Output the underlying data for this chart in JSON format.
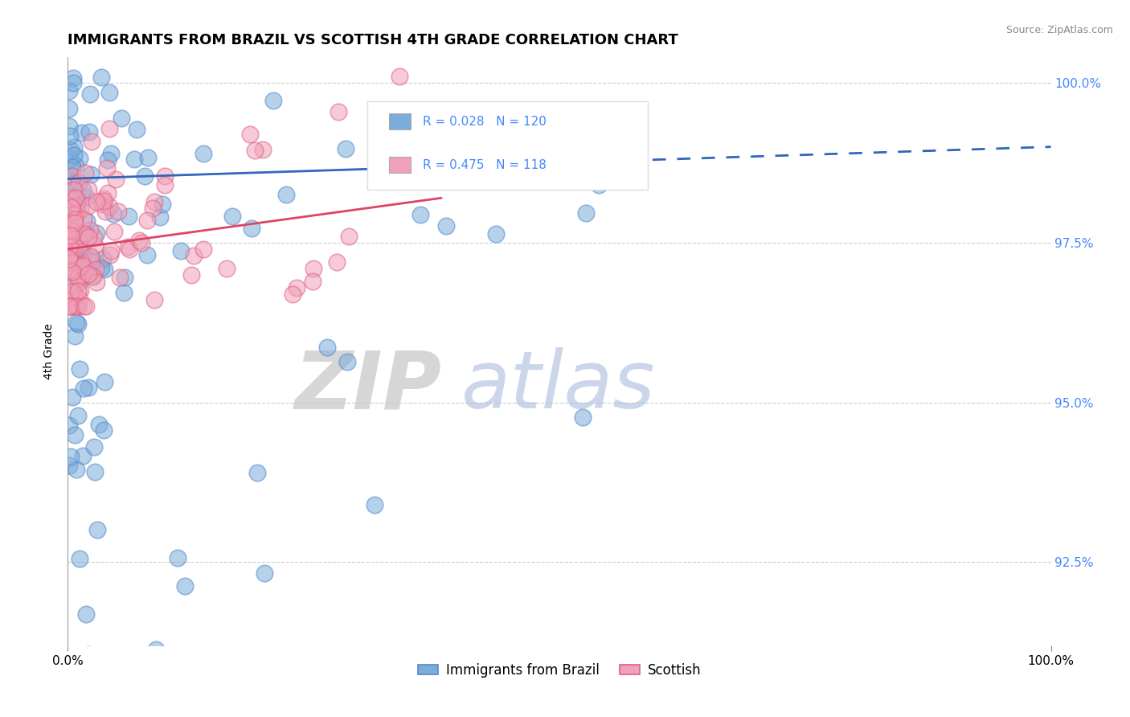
{
  "title": "IMMIGRANTS FROM BRAZIL VS SCOTTISH 4TH GRADE CORRELATION CHART",
  "source_text": "Source: ZipAtlas.com",
  "ylabel": "4th Grade",
  "legend_blue_label": "Immigrants from Brazil",
  "legend_pink_label": "Scottish",
  "r_blue": 0.028,
  "n_blue": 120,
  "r_pink": 0.475,
  "n_pink": 118,
  "watermark_zip": "ZIP",
  "watermark_atlas": "atlas",
  "blue_color": "#7aaddb",
  "blue_edge_color": "#5588cc",
  "pink_color": "#f0a0b8",
  "pink_edge_color": "#e06080",
  "blue_line_color": "#3366bb",
  "pink_line_color": "#dd4466",
  "ytick_color": "#4488ff",
  "ytick_labels": [
    "92.5%",
    "95.0%",
    "97.5%",
    "100.0%"
  ],
  "ytick_values": [
    0.925,
    0.95,
    0.975,
    1.0
  ],
  "ymin": 0.912,
  "ymax": 1.004,
  "title_fontsize": 13,
  "source_fontsize": 9,
  "legend_fontsize": 11,
  "watermark_fontsize_zip": 72,
  "watermark_fontsize_atlas": 72
}
